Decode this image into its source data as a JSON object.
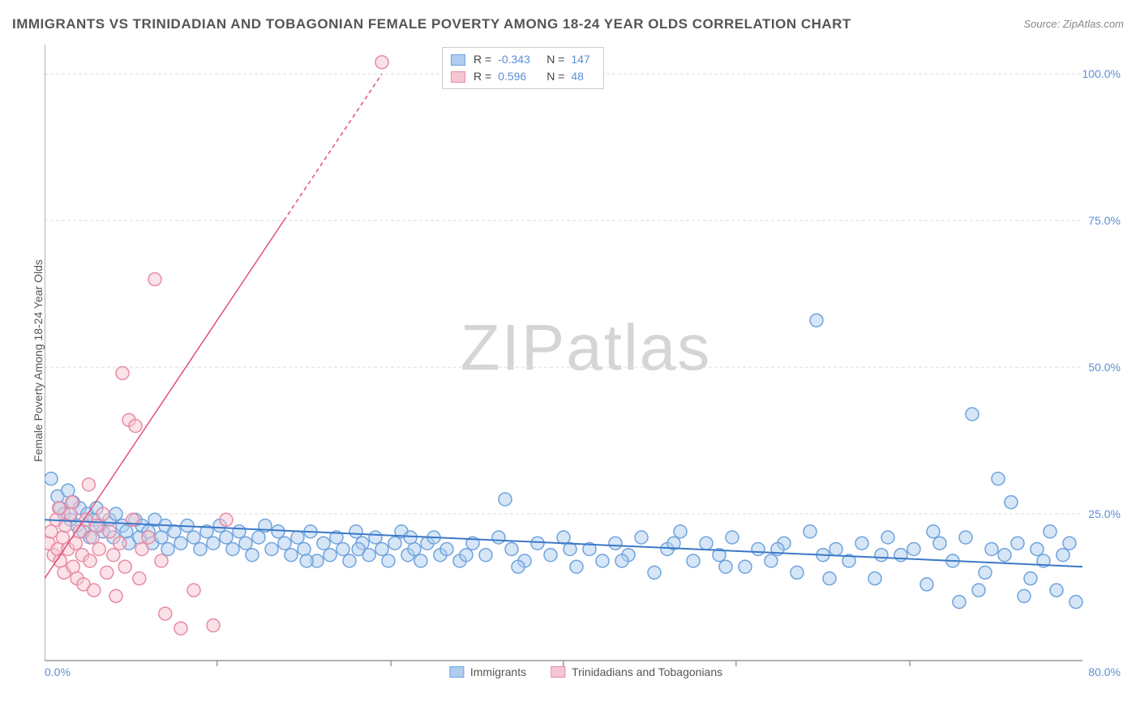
{
  "title": "IMMIGRANTS VS TRINIDADIAN AND TOBAGONIAN FEMALE POVERTY AMONG 18-24 YEAR OLDS CORRELATION CHART",
  "source": "Source: ZipAtlas.com",
  "y_axis_label": "Female Poverty Among 18-24 Year Olds",
  "watermark": {
    "part1": "ZIP",
    "part2": "atlas"
  },
  "chart": {
    "type": "scatter",
    "background_color": "#ffffff",
    "grid_color": "#dddddd",
    "axis_color": "#999999",
    "x_range": [
      0,
      80
    ],
    "y_range": [
      0,
      105
    ],
    "y_ticks": [
      {
        "v": 25,
        "label": "25.0%"
      },
      {
        "v": 50,
        "label": "50.0%"
      },
      {
        "v": 75,
        "label": "75.0%"
      },
      {
        "v": 100,
        "label": "100.0%"
      }
    ],
    "x_ticks": [
      {
        "v": 0,
        "label": "0.0%"
      },
      {
        "v": 80,
        "label": "80.0%"
      }
    ],
    "x_minor_ticks": [
      13.3,
      26.7,
      40,
      53.3,
      66.7
    ],
    "marker_radius": 8,
    "marker_opacity": 0.5,
    "marker_stroke_width": 1.5,
    "series": [
      {
        "id": "immigrants",
        "label": "Immigrants",
        "fill": "#aecdf0",
        "stroke": "#6fa3dd",
        "trend_color": "#3b78c6",
        "trend_width": 2,
        "trend": {
          "x1": 0,
          "y1": 24,
          "x2": 80,
          "y2": 16
        },
        "R": "-0.343",
        "N": "147",
        "points": [
          [
            0.5,
            31
          ],
          [
            1,
            28
          ],
          [
            1.2,
            26
          ],
          [
            1.5,
            25
          ],
          [
            1.8,
            29
          ],
          [
            2,
            24
          ],
          [
            2.2,
            27
          ],
          [
            2.5,
            23
          ],
          [
            2.7,
            26
          ],
          [
            3,
            22
          ],
          [
            3.3,
            25
          ],
          [
            3.5,
            21
          ],
          [
            3.8,
            24
          ],
          [
            4,
            26
          ],
          [
            4.3,
            23
          ],
          [
            4.5,
            22
          ],
          [
            5,
            24
          ],
          [
            5.3,
            21
          ],
          [
            5.5,
            25
          ],
          [
            6,
            23
          ],
          [
            6.3,
            22
          ],
          [
            6.5,
            20
          ],
          [
            7,
            24
          ],
          [
            7.3,
            21
          ],
          [
            7.5,
            23
          ],
          [
            8,
            22
          ],
          [
            8.3,
            20
          ],
          [
            8.5,
            24
          ],
          [
            9,
            21
          ],
          [
            9.3,
            23
          ],
          [
            9.5,
            19
          ],
          [
            10,
            22
          ],
          [
            10.5,
            20
          ],
          [
            11,
            23
          ],
          [
            11.5,
            21
          ],
          [
            12,
            19
          ],
          [
            12.5,
            22
          ],
          [
            13,
            20
          ],
          [
            13.5,
            23
          ],
          [
            14,
            21
          ],
          [
            14.5,
            19
          ],
          [
            15,
            22
          ],
          [
            15.5,
            20
          ],
          [
            16,
            18
          ],
          [
            16.5,
            21
          ],
          [
            17,
            23
          ],
          [
            17.5,
            19
          ],
          [
            18,
            22
          ],
          [
            18.5,
            20
          ],
          [
            19,
            18
          ],
          [
            19.5,
            21
          ],
          [
            20,
            19
          ],
          [
            20.5,
            22
          ],
          [
            21,
            17
          ],
          [
            21.5,
            20
          ],
          [
            22,
            18
          ],
          [
            22.5,
            21
          ],
          [
            23,
            19
          ],
          [
            23.5,
            17
          ],
          [
            24,
            22
          ],
          [
            24.5,
            20
          ],
          [
            25,
            18
          ],
          [
            25.5,
            21
          ],
          [
            26,
            19
          ],
          [
            26.5,
            17
          ],
          [
            27,
            20
          ],
          [
            27.5,
            22
          ],
          [
            28,
            18
          ],
          [
            28.5,
            19
          ],
          [
            29,
            17
          ],
          [
            29.5,
            20
          ],
          [
            30,
            21
          ],
          [
            30.5,
            18
          ],
          [
            31,
            19
          ],
          [
            32,
            17
          ],
          [
            33,
            20
          ],
          [
            34,
            18
          ],
          [
            35,
            21
          ],
          [
            35.5,
            27.5
          ],
          [
            36,
            19
          ],
          [
            37,
            17
          ],
          [
            38,
            20
          ],
          [
            39,
            18
          ],
          [
            40,
            21
          ],
          [
            41,
            16
          ],
          [
            42,
            19
          ],
          [
            43,
            17
          ],
          [
            44,
            20
          ],
          [
            45,
            18
          ],
          [
            46,
            21
          ],
          [
            47,
            15
          ],
          [
            48,
            19
          ],
          [
            49,
            22
          ],
          [
            50,
            17
          ],
          [
            51,
            20
          ],
          [
            52,
            18
          ],
          [
            53,
            21
          ],
          [
            54,
            16
          ],
          [
            55,
            19
          ],
          [
            56,
            17
          ],
          [
            57,
            20
          ],
          [
            58,
            15
          ],
          [
            59,
            22
          ],
          [
            59.5,
            58
          ],
          [
            60,
            18
          ],
          [
            61,
            19
          ],
          [
            62,
            17
          ],
          [
            63,
            20
          ],
          [
            64,
            14
          ],
          [
            65,
            21
          ],
          [
            66,
            18
          ],
          [
            67,
            19
          ],
          [
            68,
            13
          ],
          [
            69,
            20
          ],
          [
            70,
            17
          ],
          [
            70.5,
            10
          ],
          [
            71,
            21
          ],
          [
            71.5,
            42
          ],
          [
            72,
            12
          ],
          [
            73,
            19
          ],
          [
            73.5,
            31
          ],
          [
            74,
            18
          ],
          [
            74.5,
            27
          ],
          [
            75,
            20
          ],
          [
            75.5,
            11
          ],
          [
            76,
            14
          ],
          [
            76.5,
            19
          ],
          [
            77,
            17
          ],
          [
            77.5,
            22
          ],
          [
            78,
            12
          ],
          [
            78.5,
            18
          ],
          [
            79,
            20
          ],
          [
            79.5,
            10
          ],
          [
            72.5,
            15
          ],
          [
            68.5,
            22
          ],
          [
            64.5,
            18
          ],
          [
            60.5,
            14
          ],
          [
            56.5,
            19
          ],
          [
            52.5,
            16
          ],
          [
            48.5,
            20
          ],
          [
            44.5,
            17
          ],
          [
            40.5,
            19
          ],
          [
            36.5,
            16
          ],
          [
            32.5,
            18
          ],
          [
            28.2,
            21
          ],
          [
            24.2,
            19
          ],
          [
            20.2,
            17
          ]
        ]
      },
      {
        "id": "trinidadians",
        "label": "Trinidadians and Tobagonians",
        "fill": "#f6c6d2",
        "stroke": "#e88ba4",
        "trend_color": "#e24f7a",
        "trend_width": 1.5,
        "trend": {
          "x1": 0,
          "y1": 14,
          "x2": 26,
          "y2": 100
        },
        "trend_dash_after_y": 75,
        "R": "0.596",
        "N": "48",
        "points": [
          [
            0.3,
            20
          ],
          [
            0.5,
            22
          ],
          [
            0.7,
            18
          ],
          [
            0.9,
            24
          ],
          [
            1,
            19
          ],
          [
            1.1,
            26
          ],
          [
            1.2,
            17
          ],
          [
            1.4,
            21
          ],
          [
            1.5,
            15
          ],
          [
            1.6,
            23
          ],
          [
            1.8,
            19
          ],
          [
            2,
            25
          ],
          [
            2.1,
            27
          ],
          [
            2.2,
            16
          ],
          [
            2.4,
            20
          ],
          [
            2.5,
            14
          ],
          [
            2.7,
            22
          ],
          [
            2.9,
            18
          ],
          [
            3,
            13
          ],
          [
            3.2,
            24
          ],
          [
            3.4,
            30
          ],
          [
            3.5,
            17
          ],
          [
            3.7,
            21
          ],
          [
            3.8,
            12
          ],
          [
            4,
            23
          ],
          [
            4.2,
            19
          ],
          [
            4.5,
            25
          ],
          [
            4.8,
            15
          ],
          [
            5,
            22
          ],
          [
            5.3,
            18
          ],
          [
            5.5,
            11
          ],
          [
            5.8,
            20
          ],
          [
            6,
            49
          ],
          [
            6.2,
            16
          ],
          [
            6.5,
            41
          ],
          [
            6.8,
            24
          ],
          [
            7,
            40
          ],
          [
            7.3,
            14
          ],
          [
            7.5,
            19
          ],
          [
            8,
            21
          ],
          [
            8.5,
            65
          ],
          [
            9,
            17
          ],
          [
            9.3,
            8
          ],
          [
            10.5,
            5.5
          ],
          [
            11.5,
            12
          ],
          [
            13,
            6
          ],
          [
            14,
            24
          ],
          [
            26,
            102
          ]
        ]
      }
    ]
  },
  "legend_bottom": [
    {
      "series": "immigrants"
    },
    {
      "series": "trinidadians"
    }
  ]
}
